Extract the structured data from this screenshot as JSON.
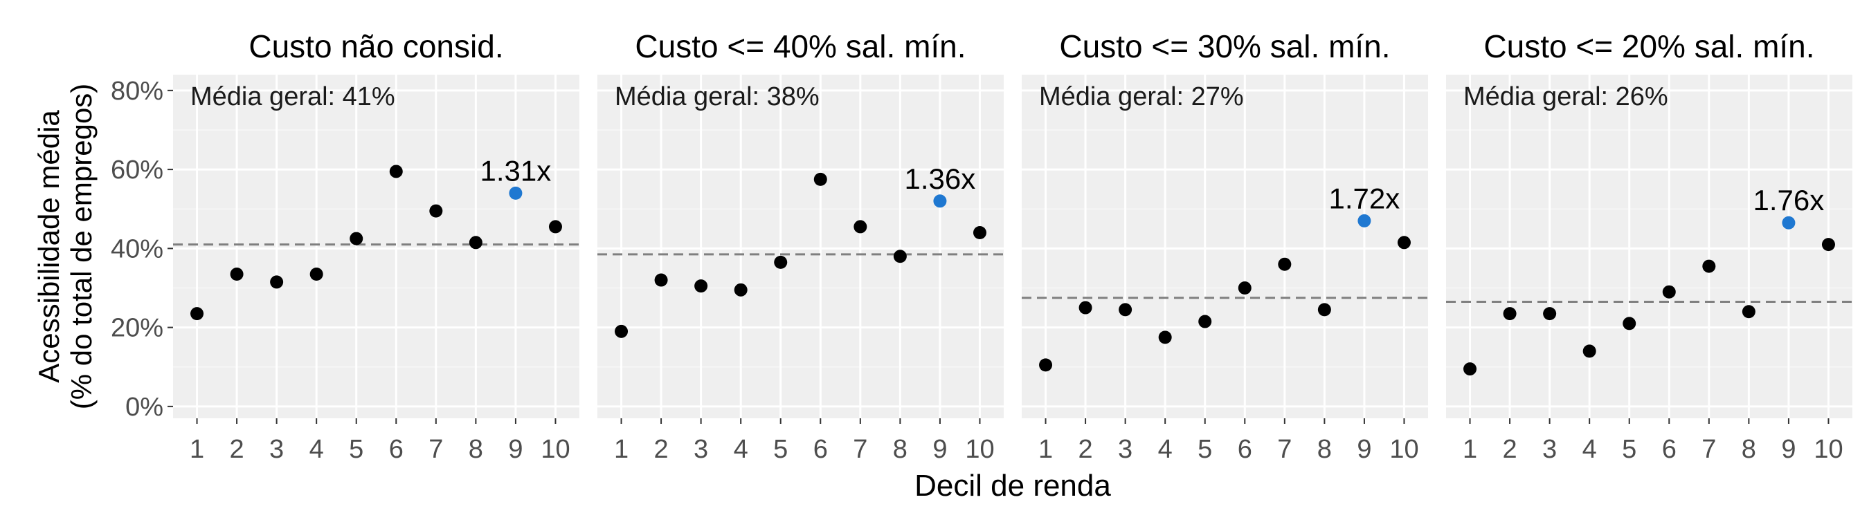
{
  "chart_data": {
    "type": "scatter",
    "xlabel": "Decil de renda",
    "ylabel": [
      "Acessibilidade média",
      "(% do total de empregos)"
    ],
    "x_ticks": [
      1,
      2,
      3,
      4,
      5,
      6,
      7,
      8,
      9,
      10
    ],
    "y_ticks": [
      "0%",
      "20%",
      "40%",
      "60%",
      "80%"
    ],
    "ylim": [
      -3,
      84
    ],
    "grid": true,
    "colors": {
      "point": "#000000",
      "highlight": "#1f78d1",
      "panel_bg": "#efefef",
      "grid": "#ffffff",
      "mean_line": "#7f7f7f"
    },
    "panels": [
      {
        "title": "Custo não consid.",
        "mean_label": "Média geral: 41%",
        "mean": 41,
        "x": [
          1,
          2,
          3,
          4,
          5,
          6,
          7,
          8,
          9,
          10
        ],
        "y": [
          23.5,
          33.5,
          31.5,
          33.5,
          42.5,
          59.5,
          49.5,
          41.5,
          54,
          45.5
        ],
        "highlight_index": 8,
        "annotation": "1.31x"
      },
      {
        "title": "Custo <= 40% sal. mín.",
        "mean_label": "Média geral: 38%",
        "mean": 38.5,
        "x": [
          1,
          2,
          3,
          4,
          5,
          6,
          7,
          8,
          9,
          10
        ],
        "y": [
          19,
          32,
          30.5,
          29.5,
          36.5,
          57.5,
          45.5,
          38,
          52,
          44
        ],
        "highlight_index": 8,
        "annotation": "1.36x"
      },
      {
        "title": "Custo <= 30% sal. mín.",
        "mean_label": "Média geral: 27%",
        "mean": 27.5,
        "x": [
          1,
          2,
          3,
          4,
          5,
          6,
          7,
          8,
          9,
          10
        ],
        "y": [
          10.5,
          25,
          24.5,
          17.5,
          21.5,
          30,
          36,
          24.5,
          47,
          41.5
        ],
        "highlight_index": 8,
        "annotation": "1.72x"
      },
      {
        "title": "Custo <= 20% sal. mín.",
        "mean_label": "Média geral: 26%",
        "mean": 26.5,
        "x": [
          1,
          2,
          3,
          4,
          5,
          6,
          7,
          8,
          9,
          10
        ],
        "y": [
          9.5,
          23.5,
          23.5,
          14,
          21,
          29,
          35.5,
          24,
          46.5,
          41
        ],
        "highlight_index": 8,
        "annotation": "1.76x"
      }
    ]
  }
}
